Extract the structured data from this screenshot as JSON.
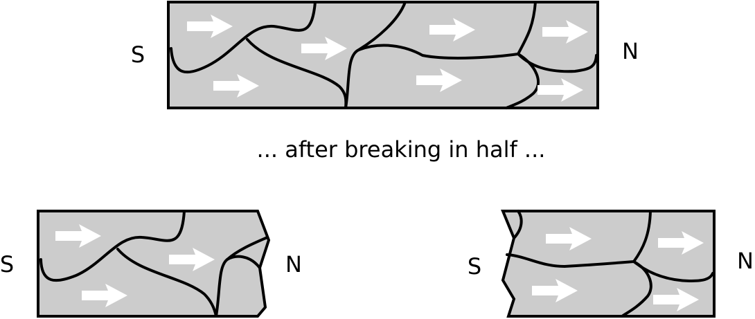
{
  "top_magnet": {
    "south_label": "S",
    "north_label": "N"
  },
  "caption": "... after breaking in half ...",
  "left_piece": {
    "south_label": "S",
    "north_label": "N"
  },
  "right_piece": {
    "south_label": "S",
    "north_label": "N"
  },
  "colors": {
    "domain_fill": "#cccccc",
    "domain_wall": "#000000",
    "arrow": "#ffffff"
  }
}
